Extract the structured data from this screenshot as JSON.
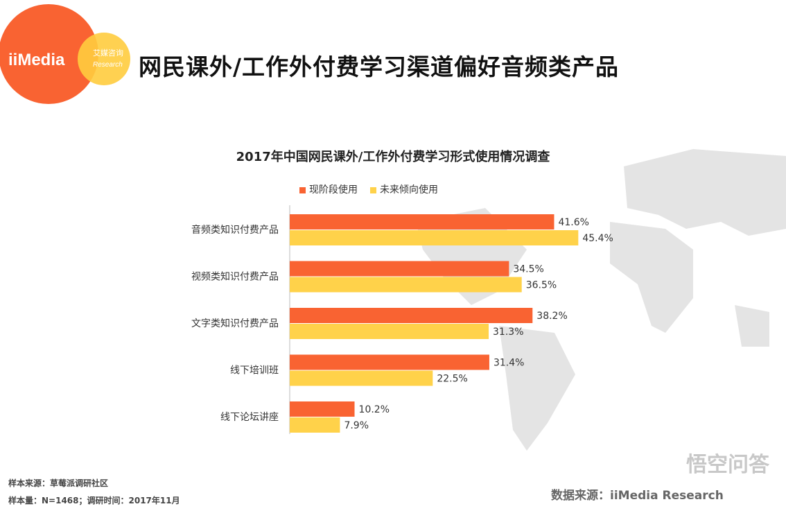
{
  "logo": {
    "brand": "iiMedia",
    "cn": "艾媒咨询",
    "en": "Research",
    "colors": {
      "orange": "#F96332",
      "yellow": "#FFCC3E"
    }
  },
  "header": {
    "title": "网民课外/工作外付费学习渠道偏好音频类产品"
  },
  "chart_data": {
    "type": "bar",
    "orientation": "horizontal",
    "title": "2017年中国网民课外/工作外付费学习形式使用情况调查",
    "categories": [
      "音频类知识付费产品",
      "视频类知识付费产品",
      "文字类知识付费产品",
      "线下培训班",
      "线下论坛讲座"
    ],
    "series": [
      {
        "name": "现阶段使用",
        "color": "#F96332",
        "values": [
          41.6,
          34.5,
          38.2,
          31.4,
          10.2
        ]
      },
      {
        "name": "未来倾向使用",
        "color": "#FFD24A",
        "values": [
          45.4,
          36.5,
          31.3,
          22.5,
          7.9
        ]
      }
    ],
    "unit": "%",
    "xlim": [
      0,
      50
    ],
    "grid": false,
    "legend": "top"
  },
  "footer": {
    "sample_source": "样本来源：草莓派调研社区",
    "sample_size": "样本量：N=1468；调研时间：2017年11月",
    "data_source": "数据来源：iiMedia Research",
    "watermark": "悟空问答"
  }
}
